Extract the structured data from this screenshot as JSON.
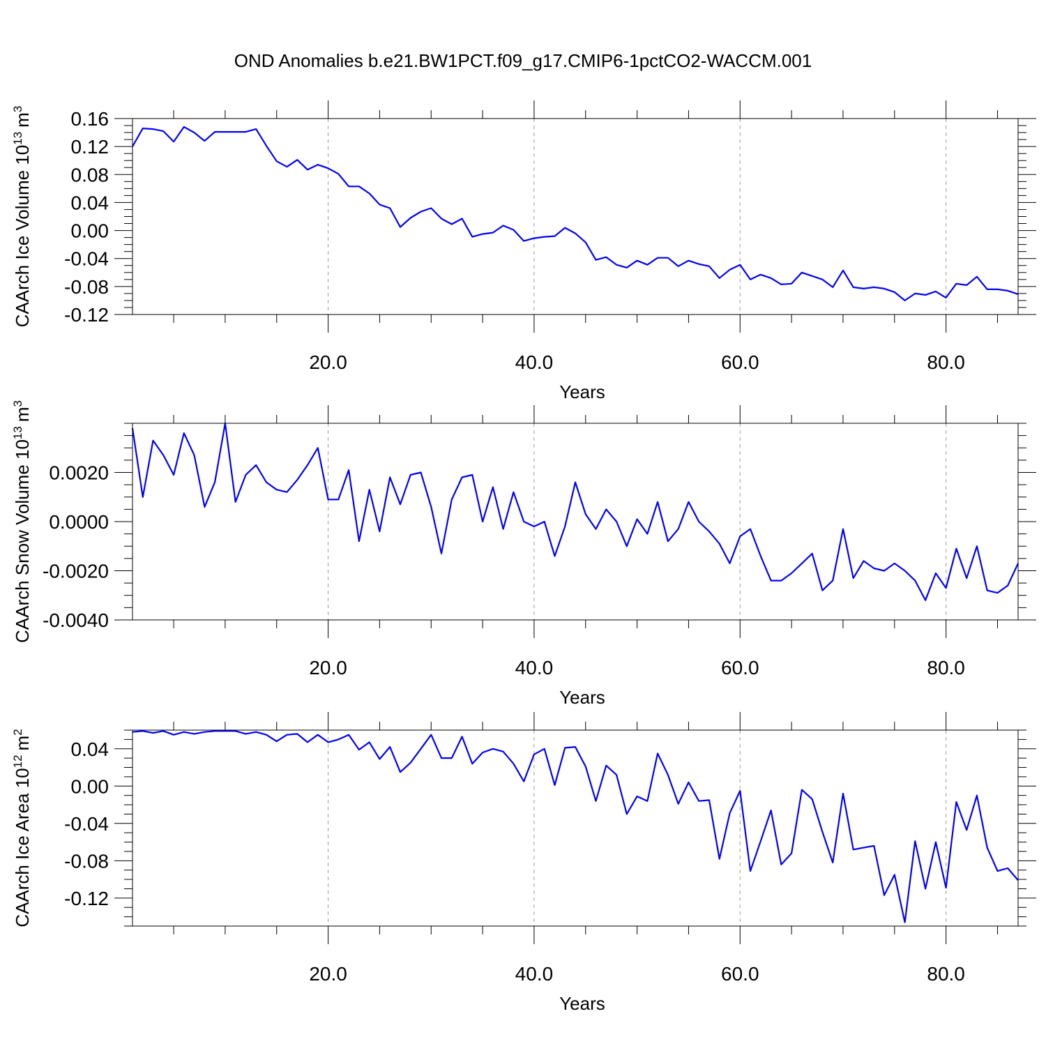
{
  "title": "OND Anomalies b.e21.BW1PCT.f09_g17.CMIP6-1pctCO2-WACCM.001",
  "colors": {
    "line": "#0000ff",
    "grid": "#999999",
    "axis": "#000000"
  },
  "chart_data": [
    {
      "type": "line",
      "name": "ice-volume",
      "ylabel": "CAArch Ice Volume 10",
      "ylabel_sup": "13",
      "ylabel_unit": "m",
      "ylabel_unit_sup": "3",
      "xlabel": "Years",
      "xlim": [
        1,
        87
      ],
      "ylim": [
        -0.12,
        0.16
      ],
      "xticks": [
        "20.0",
        "40.0",
        "60.0",
        "80.0"
      ],
      "xtick_values": [
        20,
        40,
        60,
        80
      ],
      "yticks": [
        "0.16",
        "0.12",
        "0.08",
        "0.04",
        "0.00",
        "-0.04",
        "-0.08",
        "-0.12"
      ],
      "ytick_values": [
        0.16,
        0.12,
        0.08,
        0.04,
        0.0,
        -0.04,
        -0.08,
        -0.12
      ],
      "grid": "vertical dashed at major x ticks",
      "series": [
        {
          "values": [
            0.12,
            0.146,
            0.145,
            0.142,
            0.127,
            0.148,
            0.14,
            0.128,
            0.141,
            0.141,
            0.141,
            0.141,
            0.145,
            0.121,
            0.099,
            0.091,
            0.101,
            0.087,
            0.094,
            0.089,
            0.081,
            0.063,
            0.063,
            0.053,
            0.037,
            0.032,
            0.005,
            0.018,
            0.027,
            0.032,
            0.017,
            0.009,
            0.017,
            -0.009,
            -0.005,
            -0.003,
            0.007,
            0.001,
            -0.015,
            -0.011,
            -0.009,
            -0.008,
            0.004,
            -0.004,
            -0.017,
            -0.042,
            -0.038,
            -0.049,
            -0.053,
            -0.043,
            -0.049,
            -0.039,
            -0.039,
            -0.051,
            -0.043,
            -0.048,
            -0.051,
            -0.068,
            -0.056,
            -0.049,
            -0.07,
            -0.063,
            -0.068,
            -0.077,
            -0.076,
            -0.06,
            -0.065,
            -0.07,
            -0.081,
            -0.057,
            -0.081,
            -0.083,
            -0.081,
            -0.083,
            -0.088,
            -0.1,
            -0.09,
            -0.092,
            -0.087,
            -0.096,
            -0.076,
            -0.078,
            -0.066,
            -0.084,
            -0.084,
            -0.086,
            -0.091
          ]
        }
      ]
    },
    {
      "type": "line",
      "name": "snow-volume",
      "ylabel": "CAArch Snow Volume 10",
      "ylabel_sup": "13",
      "ylabel_unit": "m",
      "ylabel_unit_sup": "3",
      "xlabel": "Years",
      "xlim": [
        1,
        87
      ],
      "ylim": [
        -0.004,
        0.004
      ],
      "xticks": [
        "20.0",
        "40.0",
        "60.0",
        "80.0"
      ],
      "xtick_values": [
        20,
        40,
        60,
        80
      ],
      "yticks": [
        "0.0020",
        "0.0000",
        "-0.0020",
        "-0.0040"
      ],
      "ytick_values": [
        0.002,
        0.0,
        -0.002,
        -0.004
      ],
      "grid": "vertical dashed at major x ticks",
      "series": [
        {
          "values": [
            0.0038,
            0.001,
            0.0033,
            0.0027,
            0.0019,
            0.0036,
            0.0027,
            0.0006,
            0.0016,
            0.004,
            0.0008,
            0.0019,
            0.0023,
            0.0016,
            0.0013,
            0.0012,
            0.0017,
            0.0023,
            0.003,
            0.0009,
            0.0009,
            0.0021,
            -0.0008,
            0.0013,
            -0.0004,
            0.0018,
            0.0007,
            0.0019,
            0.002,
            0.0006,
            -0.0013,
            0.0009,
            0.0018,
            0.0019,
            0.0,
            0.0014,
            -0.0003,
            0.0012,
            0.0,
            -0.0002,
            0.0,
            -0.0014,
            -0.0002,
            0.0016,
            0.0003,
            -0.0003,
            0.0005,
            0.0,
            -0.001,
            0.0001,
            -0.0005,
            0.0008,
            -0.0008,
            -0.0003,
            0.0008,
            0.0,
            -0.0004,
            -0.0009,
            -0.0017,
            -0.0006,
            -0.0003,
            -0.0014,
            -0.0024,
            -0.0024,
            -0.0021,
            -0.0017,
            -0.0013,
            -0.0028,
            -0.0024,
            -0.0003,
            -0.0023,
            -0.0016,
            -0.0019,
            -0.002,
            -0.0017,
            -0.002,
            -0.0024,
            -0.0032,
            -0.0021,
            -0.0027,
            -0.0011,
            -0.0023,
            -0.001,
            -0.0028,
            -0.0029,
            -0.0026,
            -0.0017
          ]
        }
      ]
    },
    {
      "type": "line",
      "name": "ice-area",
      "ylabel": "CAArch Ice Area 10",
      "ylabel_sup": "12",
      "ylabel_unit": "m",
      "ylabel_unit_sup": "2",
      "xlabel": "Years",
      "xlim": [
        1,
        87
      ],
      "ylim": [
        -0.15,
        0.06
      ],
      "xticks": [
        "20.0",
        "40.0",
        "60.0",
        "80.0"
      ],
      "xtick_values": [
        20,
        40,
        60,
        80
      ],
      "yticks": [
        "0.04",
        "0.00",
        "-0.04",
        "-0.08",
        "-0.12"
      ],
      "ytick_values": [
        0.04,
        0.0,
        -0.04,
        -0.08,
        -0.12
      ],
      "grid": "vertical dashed at major x ticks",
      "series": [
        {
          "values": [
            0.058,
            0.059,
            0.057,
            0.059,
            0.055,
            0.058,
            0.056,
            0.058,
            0.059,
            0.059,
            0.059,
            0.056,
            0.058,
            0.055,
            0.048,
            0.055,
            0.056,
            0.047,
            0.055,
            0.047,
            0.05,
            0.055,
            0.039,
            0.047,
            0.029,
            0.042,
            0.015,
            0.025,
            0.04,
            0.055,
            0.03,
            0.03,
            0.053,
            0.024,
            0.036,
            0.04,
            0.037,
            0.024,
            0.005,
            0.034,
            0.04,
            0.001,
            0.041,
            0.042,
            0.021,
            -0.016,
            0.022,
            0.012,
            -0.03,
            -0.011,
            -0.016,
            0.035,
            0.012,
            -0.019,
            0.004,
            -0.016,
            -0.015,
            -0.078,
            -0.029,
            -0.005,
            -0.091,
            -0.059,
            -0.026,
            -0.084,
            -0.072,
            -0.004,
            -0.014,
            -0.049,
            -0.082,
            -0.008,
            -0.068,
            -0.066,
            -0.064,
            -0.117,
            -0.095,
            -0.146,
            -0.059,
            -0.11,
            -0.06,
            -0.109,
            -0.017,
            -0.047,
            -0.01,
            -0.066,
            -0.091,
            -0.088,
            -0.101
          ]
        }
      ]
    }
  ]
}
